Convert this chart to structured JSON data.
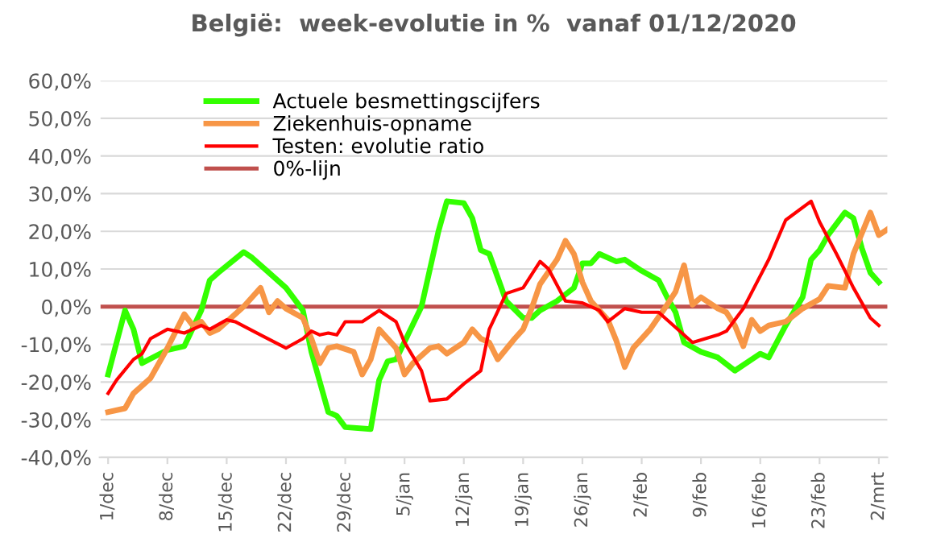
{
  "chart_data": {
    "type": "line",
    "title": "België:  week-evolutie in %  vanaf 01/12/2020",
    "series": [
      {
        "name": "Actuele besmettingscijfers",
        "color": "#33ff00",
        "x": [
          "2020-12-01",
          "2020-12-03",
          "2020-12-04",
          "2020-12-05",
          "2020-12-08",
          "2020-12-10",
          "2020-12-12",
          "2020-12-13",
          "2020-12-14",
          "2020-12-17",
          "2020-12-18",
          "2020-12-20",
          "2020-12-22",
          "2020-12-24",
          "2020-12-25",
          "2020-12-27",
          "2020-12-28",
          "2020-12-29",
          "2021-01-01",
          "2021-01-02",
          "2021-01-03",
          "2021-01-04",
          "2021-01-07",
          "2021-01-09",
          "2021-01-10",
          "2021-01-12",
          "2021-01-13",
          "2021-01-14",
          "2021-01-15",
          "2021-01-17",
          "2021-01-19",
          "2021-01-20",
          "2021-01-21",
          "2021-01-23",
          "2021-01-25",
          "2021-01-26",
          "2021-01-27",
          "2021-01-28",
          "2021-01-30",
          "2021-01-31",
          "2021-02-02",
          "2021-02-04",
          "2021-02-05",
          "2021-02-06",
          "2021-02-07",
          "2021-02-09",
          "2021-02-11",
          "2021-02-13",
          "2021-02-16",
          "2021-02-17",
          "2021-02-19",
          "2021-02-21",
          "2021-02-22",
          "2021-02-23",
          "2021-02-24",
          "2021-02-26",
          "2021-02-27",
          "2021-02-28",
          "2021-03-01",
          "2021-03-02"
        ],
        "values": [
          -18,
          -1,
          -6,
          -15,
          -11.5,
          -10.5,
          -1,
          7,
          9,
          14.5,
          13,
          9,
          5,
          -1,
          -12,
          -28,
          -29,
          -32,
          -32.5,
          -19.5,
          -14.5,
          -14,
          0,
          20,
          28,
          27.5,
          23.5,
          15,
          14,
          1.5,
          -3,
          -3,
          -1,
          1.5,
          5,
          11.5,
          11.5,
          14,
          12,
          12.5,
          9.5,
          7,
          2.5,
          -1.5,
          -9.5,
          -12,
          -13.5,
          -17,
          -12.5,
          -13.5,
          -5,
          2.5,
          12.5,
          15,
          19,
          25,
          23.5,
          15.5,
          9,
          6.5
        ]
      },
      {
        "name": "Ziekenhuis-opname",
        "color": "#f79646",
        "x": [
          "2020-12-01",
          "2020-12-03",
          "2020-12-04",
          "2020-12-06",
          "2020-12-08",
          "2020-12-09",
          "2020-12-10",
          "2020-12-11",
          "2020-12-12",
          "2020-12-13",
          "2020-12-14",
          "2020-12-16",
          "2020-12-17",
          "2020-12-19",
          "2020-12-20",
          "2020-12-21",
          "2020-12-22",
          "2020-12-24",
          "2020-12-25",
          "2020-12-26",
          "2020-12-27",
          "2020-12-28",
          "2020-12-30",
          "2020-12-31",
          "2021-01-01",
          "2021-01-02",
          "2021-01-04",
          "2021-01-05",
          "2021-01-06",
          "2021-01-08",
          "2021-01-09",
          "2021-01-10",
          "2021-01-12",
          "2021-01-13",
          "2021-01-14",
          "2021-01-15",
          "2021-01-16",
          "2021-01-18",
          "2021-01-19",
          "2021-01-20",
          "2021-01-21",
          "2021-01-23",
          "2021-01-24",
          "2021-01-25",
          "2021-01-26",
          "2021-01-27",
          "2021-01-29",
          "2021-01-30",
          "2021-01-31",
          "2021-02-01",
          "2021-02-03",
          "2021-02-05",
          "2021-02-06",
          "2021-02-07",
          "2021-02-08",
          "2021-02-09",
          "2021-02-11",
          "2021-02-12",
          "2021-02-13",
          "2021-02-14",
          "2021-02-15",
          "2021-02-16",
          "2021-02-17",
          "2021-02-19",
          "2021-02-21",
          "2021-02-23",
          "2021-02-24",
          "2021-02-26",
          "2021-02-27",
          "2021-03-01",
          "2021-03-02",
          "2021-03-03"
        ],
        "values": [
          -28,
          -27,
          -23,
          -19,
          -11,
          -6.5,
          -2,
          -5,
          -4,
          -7,
          -6,
          -2,
          0,
          5,
          -1.5,
          1.5,
          -0.5,
          -3,
          -8.5,
          -15,
          -11,
          -10.5,
          -12,
          -18,
          -14,
          -6,
          -11,
          -18,
          -15,
          -11,
          -10.5,
          -12.5,
          -9.5,
          -6,
          -8.5,
          -9.5,
          -14,
          -8.5,
          -6,
          -0.5,
          6,
          12.5,
          17.5,
          14,
          6.5,
          1.5,
          -3.5,
          -9,
          -16,
          -11,
          -6,
          0.5,
          4,
          11,
          0.5,
          2.5,
          -0.5,
          -1.5,
          -5,
          -10.5,
          -3.5,
          -6.5,
          -5,
          -4,
          -0.5,
          2,
          5.5,
          5,
          14,
          25,
          19,
          20.5
        ]
      },
      {
        "name": "Testen: evolutie ratio",
        "color": "#ff0000",
        "x": [
          "2020-12-01",
          "2020-12-02",
          "2020-12-04",
          "2020-12-05",
          "2020-12-06",
          "2020-12-08",
          "2020-12-10",
          "2020-12-12",
          "2020-12-13",
          "2020-12-15",
          "2020-12-16",
          "2020-12-19",
          "2020-12-22",
          "2020-12-24",
          "2020-12-25",
          "2020-12-26",
          "2020-12-27",
          "2020-12-28",
          "2020-12-29",
          "2020-12-31",
          "2021-01-02",
          "2021-01-04",
          "2021-01-05",
          "2021-01-07",
          "2021-01-08",
          "2021-01-10",
          "2021-01-12",
          "2021-01-14",
          "2021-01-15",
          "2021-01-17",
          "2021-01-19",
          "2021-01-21",
          "2021-01-22",
          "2021-01-24",
          "2021-01-26",
          "2021-01-28",
          "2021-01-29",
          "2021-01-31",
          "2021-02-02",
          "2021-02-04",
          "2021-02-08",
          "2021-02-11",
          "2021-02-12",
          "2021-02-14",
          "2021-02-17",
          "2021-02-19",
          "2021-02-22",
          "2021-02-23",
          "2021-02-25",
          "2021-02-27",
          "2021-03-01",
          "2021-03-02"
        ],
        "values": [
          -23,
          -19.5,
          -14,
          -12.5,
          -8.5,
          -6,
          -7,
          -5,
          -6,
          -3.5,
          -4,
          -7.5,
          -11,
          -8.5,
          -6.5,
          -7.5,
          -7,
          -7.5,
          -4,
          -4,
          -1,
          -4,
          -9.5,
          -17,
          -25,
          -24.5,
          -20.5,
          -17,
          -6,
          3.5,
          5,
          12,
          10,
          1.5,
          1,
          -1,
          -4,
          -0.5,
          -1.5,
          -1.5,
          -9.5,
          -7.5,
          -6.5,
          -0.5,
          12.5,
          23,
          28,
          22.5,
          14,
          5,
          -3,
          -5
        ]
      },
      {
        "name": "0%-lijn",
        "color": "#c0504d",
        "x": [
          "2020-11-30",
          "2021-03-03"
        ],
        "values": [
          0,
          0
        ]
      }
    ],
    "xlim": [
      "2020-11-30",
      "2021-03-03"
    ],
    "xticks": [
      {
        "value": "2020-12-01",
        "label": "1/dec"
      },
      {
        "value": "2020-12-08",
        "label": "8/dec"
      },
      {
        "value": "2020-12-15",
        "label": "15/dec"
      },
      {
        "value": "2020-12-22",
        "label": "22/dec"
      },
      {
        "value": "2020-12-29",
        "label": "29/dec"
      },
      {
        "value": "2021-01-05",
        "label": "5/jan"
      },
      {
        "value": "2021-01-12",
        "label": "12/jan"
      },
      {
        "value": "2021-01-19",
        "label": "19/jan"
      },
      {
        "value": "2021-01-26",
        "label": "26/jan"
      },
      {
        "value": "2021-02-02",
        "label": "2/feb"
      },
      {
        "value": "2021-02-09",
        "label": "9/feb"
      },
      {
        "value": "2021-02-16",
        "label": "16/feb"
      },
      {
        "value": "2021-02-23",
        "label": "23/feb"
      },
      {
        "value": "2021-03-02",
        "label": "2/mrt"
      }
    ],
    "ylim": [
      -40,
      60
    ],
    "yticks": [
      {
        "value": -40,
        "label": "-40,0%"
      },
      {
        "value": -30,
        "label": "-30,0%"
      },
      {
        "value": -20,
        "label": "-20,0%"
      },
      {
        "value": -10,
        "label": "-10,0%"
      },
      {
        "value": 0,
        "label": "0,0%"
      },
      {
        "value": 10,
        "label": "10,0%"
      },
      {
        "value": 20,
        "label": "20,0%"
      },
      {
        "value": 30,
        "label": "30,0%"
      },
      {
        "value": 40,
        "label": "40,0%"
      },
      {
        "value": 50,
        "label": "50,0%"
      },
      {
        "value": 60,
        "label": "60,0%"
      }
    ],
    "grid": "y",
    "legend": "top left"
  }
}
